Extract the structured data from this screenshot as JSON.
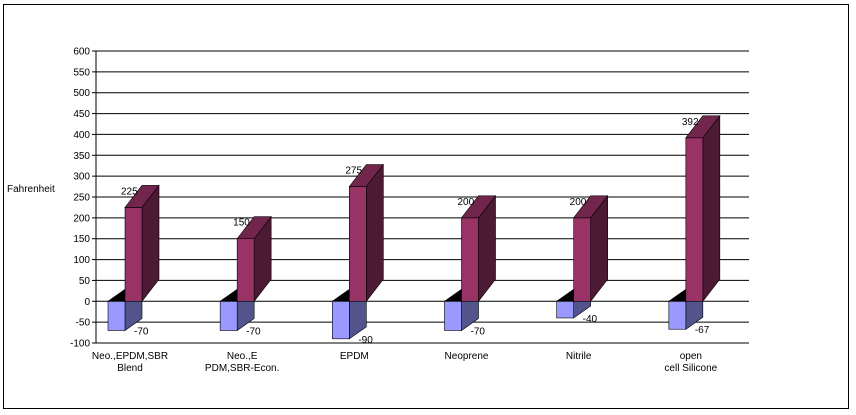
{
  "chart_data": {
    "type": "bar",
    "ylabel": "Fahrenheit",
    "ylim": [
      -100,
      600
    ],
    "ytick_step": 50,
    "categories": [
      [
        "Neo.,EPDM,SBR",
        "Blend"
      ],
      [
        "Neo.,E",
        "PDM,SBR-Econ."
      ],
      [
        "EPDM"
      ],
      [
        "Neoprene"
      ],
      [
        "Nitrile"
      ],
      [
        "open",
        "cell Silicone"
      ]
    ],
    "series": [
      {
        "values": [
          -70,
          -70,
          -90,
          -70,
          -40,
          -67
        ],
        "color": "#9999ff"
      },
      {
        "values": [
          225,
          150,
          275,
          200,
          200,
          392
        ],
        "color": "#993366"
      }
    ],
    "grid": true,
    "legend": "none"
  }
}
